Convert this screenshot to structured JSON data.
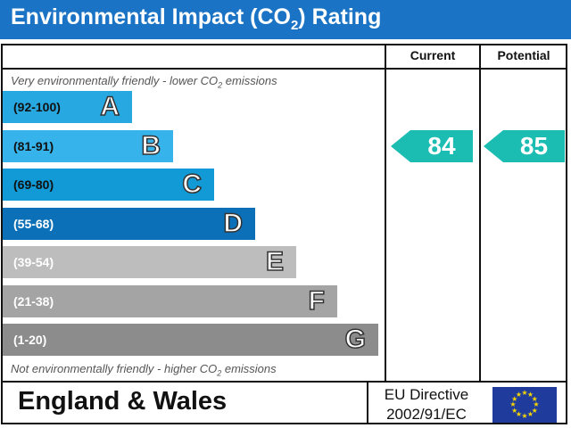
{
  "header": {
    "title_prefix": "Environmental Impact (CO",
    "title_sub": "2",
    "title_suffix": ") Rating"
  },
  "columns": {
    "current_label": "Current",
    "potential_label": "Potential"
  },
  "captions": {
    "top_prefix": "Very environmentally friendly - lower CO",
    "top_sub": "2",
    "top_suffix": " emissions",
    "bottom_prefix": "Not environmentally friendly - higher CO",
    "bottom_sub": "2",
    "bottom_suffix": " emissions"
  },
  "chart_data": {
    "type": "bar",
    "title": "Environmental Impact (CO2) Rating",
    "bands": [
      {
        "letter": "A",
        "range": "(92-100)",
        "color": "#27a8e0",
        "label_color": "#111111"
      },
      {
        "letter": "B",
        "range": "(81-91)",
        "color": "#35b3ea",
        "label_color": "#111111"
      },
      {
        "letter": "C",
        "range": "(69-80)",
        "color": "#119ad6",
        "label_color": "#111111"
      },
      {
        "letter": "D",
        "range": "(55-68)",
        "color": "#0c70b8",
        "label_color": "#ffffff"
      },
      {
        "letter": "E",
        "range": "(39-54)",
        "color": "#bdbdbd",
        "label_color": "#ffffff"
      },
      {
        "letter": "F",
        "range": "(21-38)",
        "color": "#a4a4a4",
        "label_color": "#ffffff"
      },
      {
        "letter": "G",
        "range": "(1-20)",
        "color": "#8c8c8c",
        "label_color": "#ffffff"
      }
    ],
    "current": 84,
    "potential": 85,
    "indicator_color": "#1bbdb2"
  },
  "footer": {
    "region": "England & Wales",
    "directive_line1": "EU Directive",
    "directive_line2": "2002/91/EC",
    "flag_color": "#1f3c9c",
    "flag_icon": "eu-flag-icon"
  }
}
